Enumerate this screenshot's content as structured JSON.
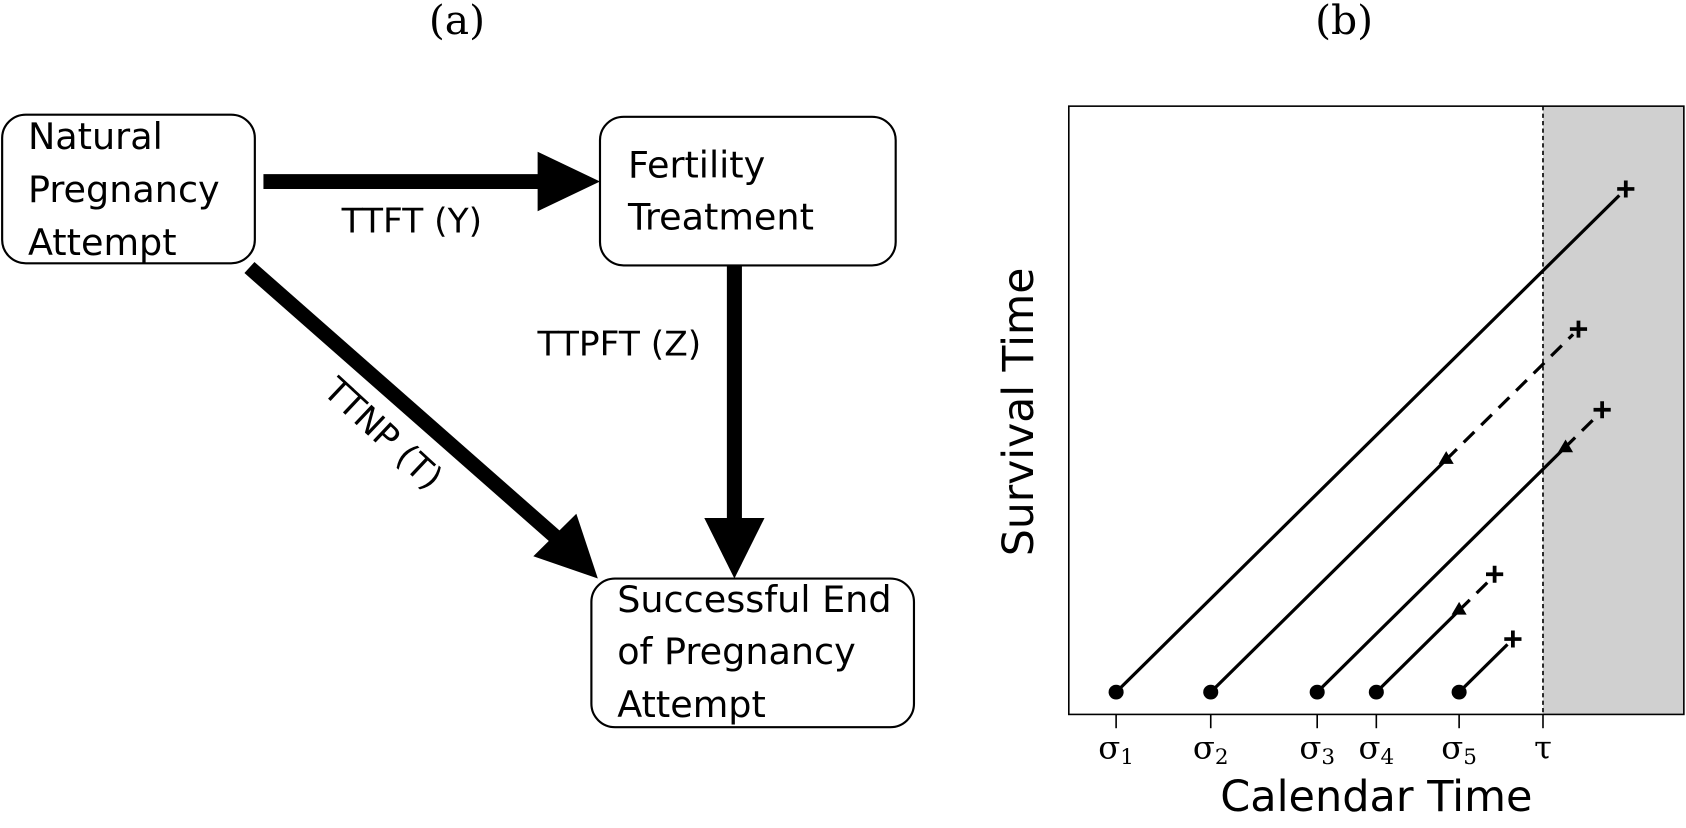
{
  "panels": {
    "a": "(a)",
    "b": "(b)"
  },
  "nodes": [
    {
      "lines": [
        "Natural",
        "Pregnancy",
        "Attempt"
      ]
    },
    {
      "lines": [
        "Fertility",
        "Treatment"
      ]
    },
    {
      "lines": [
        "Successful End",
        "of Pregnancy",
        "Attempt"
      ]
    }
  ],
  "edges": [
    {
      "label": "TTFT (Y)"
    },
    {
      "label": "TTPFT (Z)"
    },
    {
      "label": "TTNP (T)"
    }
  ],
  "plot": {
    "y_label": "Survival Time",
    "x_label": "Calendar Time",
    "x_ticks": [
      {
        "base": "σ",
        "sub": "1"
      },
      {
        "base": "σ",
        "sub": "2"
      },
      {
        "base": "σ",
        "sub": "3"
      },
      {
        "base": "σ",
        "sub": "4"
      },
      {
        "base": "σ",
        "sub": "5"
      },
      {
        "base": "τ"
      }
    ]
  }
}
